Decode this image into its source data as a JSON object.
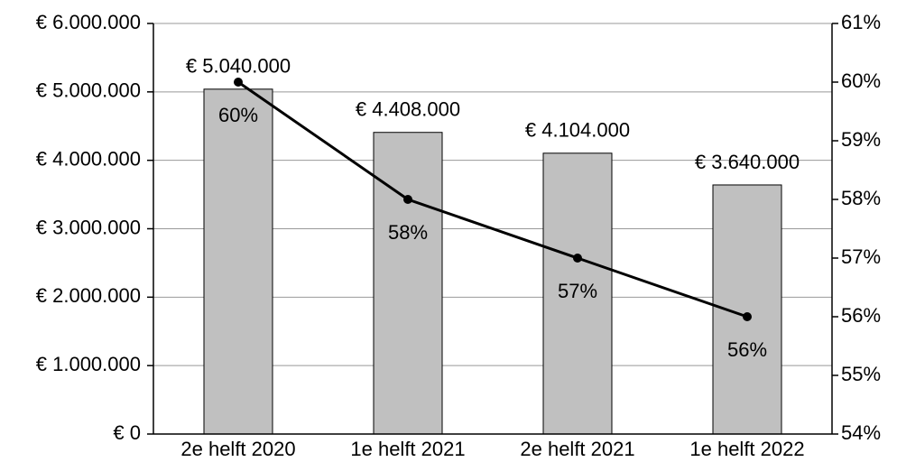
{
  "chart_data": {
    "type": "bar_line",
    "categories": [
      "2e helft 2020",
      "1e helft 2021",
      "2e helft 2021",
      "1e helft 2022"
    ],
    "series": [
      {
        "type": "bar",
        "color": "#c0c0c0",
        "values": [
          5040000,
          4408000,
          4104000,
          3640000
        ],
        "value_labels": [
          "€ 5.040.000",
          "€ 4.408.000",
          "€ 4.104.000",
          "€ 3.640.000"
        ]
      },
      {
        "type": "line",
        "axis": "y2",
        "color": "#000000",
        "values": [
          60,
          58,
          57,
          56
        ],
        "value_labels": [
          "60%",
          "58%",
          "57%",
          "56%"
        ]
      }
    ],
    "ylim": [
      0,
      6000000
    ],
    "yticks": [
      {
        "value": 0,
        "label": "€ 0"
      },
      {
        "value": 1000000,
        "label": "€ 1.000.000"
      },
      {
        "value": 2000000,
        "label": "€ 2.000.000"
      },
      {
        "value": 3000000,
        "label": "€ 3.000.000"
      },
      {
        "value": 4000000,
        "label": "€ 4.000.000"
      },
      {
        "value": 5000000,
        "label": "€ 5.000.000"
      },
      {
        "value": 6000000,
        "label": "€ 6.000.000"
      }
    ],
    "y2lim": [
      54,
      61
    ],
    "y2ticks": [
      {
        "value": 54,
        "label": "54%"
      },
      {
        "value": 55,
        "label": "55%"
      },
      {
        "value": 56,
        "label": "56%"
      },
      {
        "value": 57,
        "label": "57%"
      },
      {
        "value": 58,
        "label": "58%"
      },
      {
        "value": 59,
        "label": "59%"
      },
      {
        "value": 60,
        "label": "60%"
      },
      {
        "value": 61,
        "label": "61%"
      }
    ],
    "grid": true
  }
}
